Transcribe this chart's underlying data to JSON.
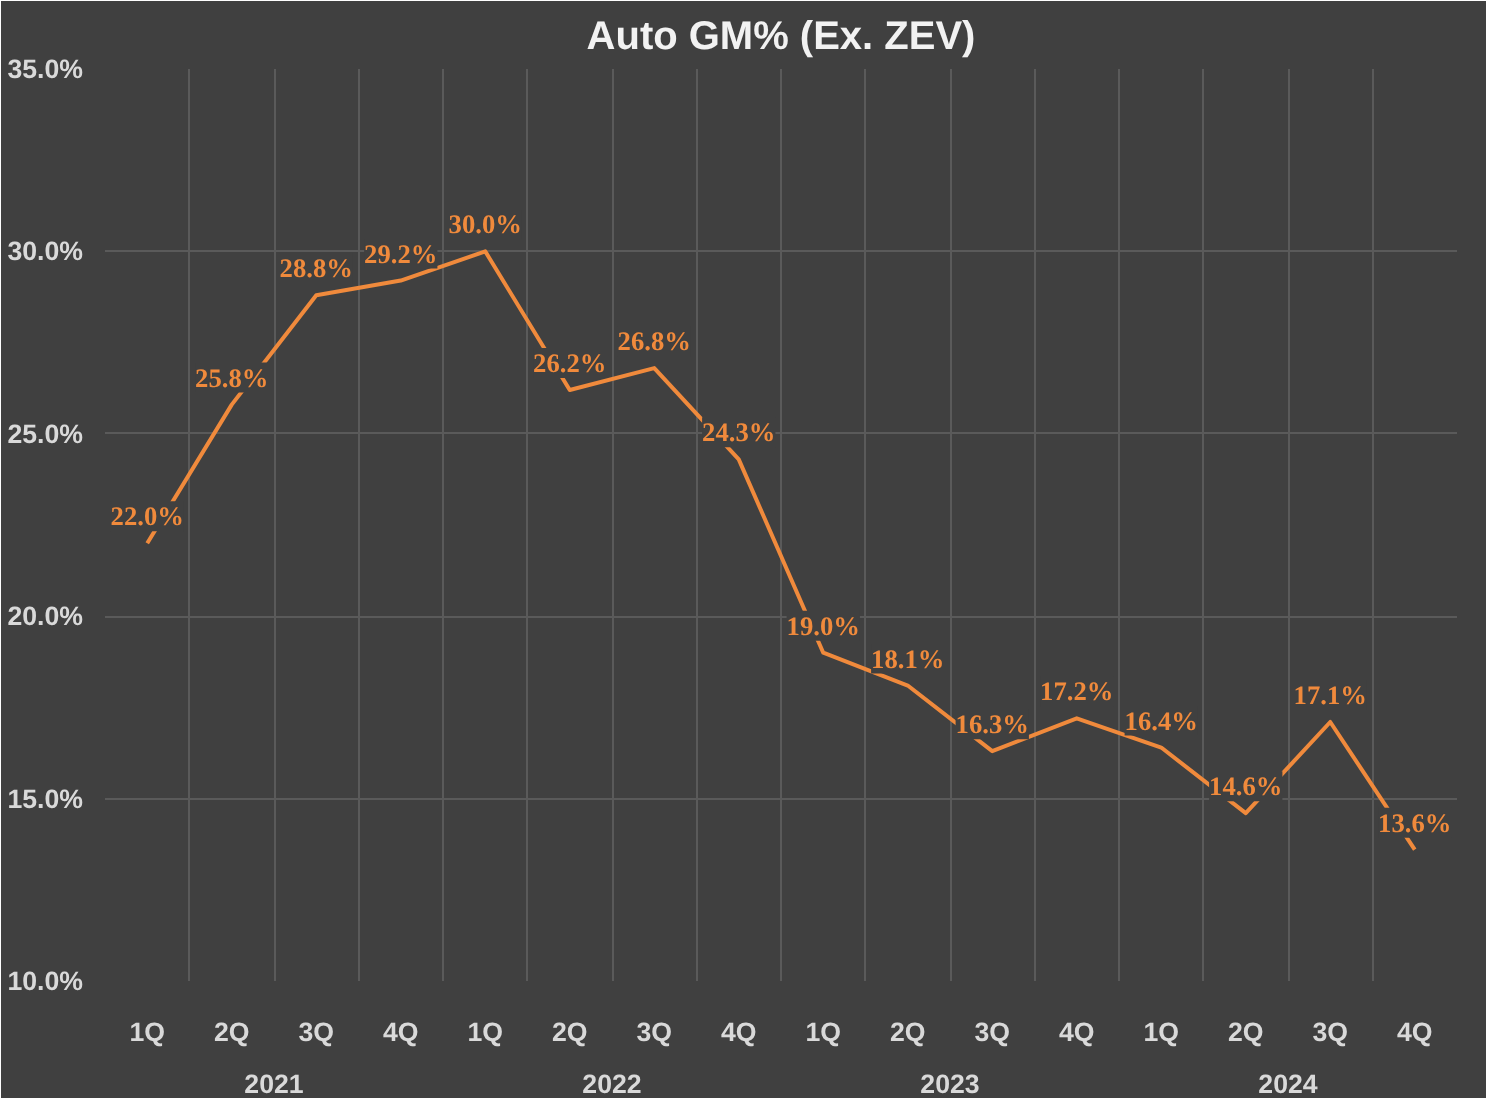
{
  "chart_data": {
    "type": "line",
    "title": "Auto GM% (Ex. ZEV)",
    "categories": [
      "1Q",
      "2Q",
      "3Q",
      "4Q",
      "1Q",
      "2Q",
      "3Q",
      "4Q",
      "1Q",
      "2Q",
      "3Q",
      "4Q",
      "1Q",
      "2Q",
      "3Q",
      "4Q"
    ],
    "series": [
      {
        "color": "#f08a3c",
        "values": [
          22.0,
          25.8,
          28.8,
          29.2,
          30.0,
          26.2,
          26.8,
          24.3,
          19.0,
          18.1,
          16.3,
          17.2,
          16.4,
          14.6,
          17.1,
          13.6
        ],
        "value_labels": [
          "22.0%",
          "25.8%",
          "28.8%",
          "29.2%",
          "30.0%",
          "26.2%",
          "26.8%",
          "24.3%",
          "19.0%",
          "18.1%",
          "16.3%",
          "17.2%",
          "16.4%",
          "14.6%",
          "17.1%",
          "13.6%"
        ]
      }
    ],
    "ylim": [
      10,
      35
    ],
    "yticks": [
      {
        "value": 10,
        "label": "10.0%"
      },
      {
        "value": 15,
        "label": "15.0%"
      },
      {
        "value": 20,
        "label": "20.0%"
      },
      {
        "value": 25,
        "label": "25.0%"
      },
      {
        "value": 30,
        "label": "30.0%"
      },
      {
        "value": 35,
        "label": "35.0%"
      }
    ],
    "annotations": [
      "2021",
      "2022",
      "2023",
      "2024"
    ],
    "grid": true,
    "marker": "none",
    "line_style": "solid"
  }
}
